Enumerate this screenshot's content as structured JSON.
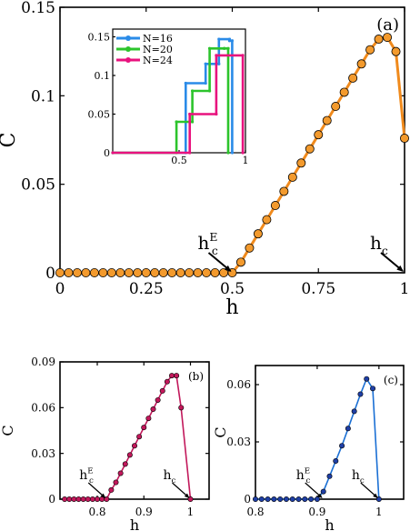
{
  "chart_data": [
    {
      "id": "a",
      "type": "line",
      "panel_label": "(a)",
      "xlabel": "h",
      "ylabel": "C",
      "xlim": [
        0,
        1
      ],
      "ylim": [
        0,
        0.15
      ],
      "xticks": [
        "0",
        "0.25",
        "0.5",
        "0.75",
        "1"
      ],
      "yticks": [
        "0",
        "0.05",
        "0.1",
        "0.15"
      ],
      "color": "#f5a037",
      "marker_color": "#f39a2d",
      "line_color": "#f08a1c",
      "annotations": [
        {
          "label": "h",
          "sub": "c",
          "sup": "E",
          "x": 0.5,
          "y": 0
        },
        {
          "label": "h",
          "sub": "c",
          "sup": "",
          "x": 1.0,
          "y": 0
        }
      ],
      "x": [
        0,
        0.025,
        0.05,
        0.075,
        0.1,
        0.125,
        0.15,
        0.175,
        0.2,
        0.225,
        0.25,
        0.275,
        0.3,
        0.325,
        0.35,
        0.375,
        0.4,
        0.425,
        0.45,
        0.475,
        0.5,
        0.525,
        0.55,
        0.575,
        0.6,
        0.625,
        0.65,
        0.675,
        0.7,
        0.725,
        0.75,
        0.775,
        0.8,
        0.825,
        0.85,
        0.875,
        0.9,
        0.925,
        0.95,
        0.975,
        1.0
      ],
      "y": [
        0,
        0,
        0,
        0,
        0,
        0,
        0,
        0,
        0,
        0,
        0,
        0,
        0,
        0,
        0,
        0,
        0,
        0,
        0,
        0,
        0,
        0.006,
        0.014,
        0.022,
        0.03,
        0.038,
        0.046,
        0.054,
        0.062,
        0.07,
        0.078,
        0.086,
        0.094,
        0.102,
        0.11,
        0.118,
        0.126,
        0.132,
        0.133,
        0.125,
        0.076
      ],
      "inset": {
        "xlim": [
          0,
          1
        ],
        "ylim": [
          0,
          0.16
        ],
        "xticks": [
          "0.5",
          "1"
        ],
        "yticks": [
          "0",
          "0.05",
          "0.1",
          "0.15"
        ],
        "series": [
          {
            "name": "N=16",
            "color": "#2a8be8",
            "points": [
              [
                0,
                0
              ],
              [
                0.55,
                0
              ],
              [
                0.55,
                0.09
              ],
              [
                0.7,
                0.09
              ],
              [
                0.7,
                0.115
              ],
              [
                0.8,
                0.115
              ],
              [
                0.8,
                0.147
              ],
              [
                0.88,
                0.147
              ],
              [
                0.88,
                0.145
              ],
              [
                0.9,
                0.145
              ],
              [
                0.9,
                0
              ]
            ]
          },
          {
            "name": "N=20",
            "color": "#2cc42c",
            "points": [
              [
                0,
                0
              ],
              [
                0.48,
                0
              ],
              [
                0.48,
                0.04
              ],
              [
                0.6,
                0.04
              ],
              [
                0.6,
                0.08
              ],
              [
                0.73,
                0.08
              ],
              [
                0.73,
                0.135
              ],
              [
                0.84,
                0.135
              ],
              [
                0.84,
                0.135
              ],
              [
                0.87,
                0.135
              ],
              [
                0.87,
                0
              ]
            ]
          },
          {
            "name": "N=24",
            "color": "#e8127e",
            "points": [
              [
                0,
                0
              ],
              [
                0.58,
                0
              ],
              [
                0.58,
                0.05
              ],
              [
                0.78,
                0.05
              ],
              [
                0.78,
                0.126
              ],
              [
                0.98,
                0.126
              ],
              [
                0.98,
                0
              ]
            ]
          }
        ]
      }
    },
    {
      "id": "b",
      "type": "line",
      "panel_label": "(b)",
      "xlabel": "h",
      "ylabel": "C",
      "xlim": [
        0.72,
        1.04
      ],
      "ylim": [
        0,
        0.09
      ],
      "xticks": [
        "0.8",
        "0.9",
        "1"
      ],
      "yticks": [
        "0",
        "0.03",
        "0.06",
        "0.09"
      ],
      "color": "#c2185b",
      "annotations": [
        {
          "label": "h",
          "sub": "c",
          "sup": "E",
          "x": 0.82,
          "y": 0
        },
        {
          "label": "h",
          "sub": "c",
          "sup": "",
          "x": 1.0,
          "y": 0
        }
      ],
      "x": [
        0.73,
        0.74,
        0.75,
        0.76,
        0.77,
        0.78,
        0.79,
        0.8,
        0.81,
        0.82,
        0.83,
        0.84,
        0.85,
        0.86,
        0.87,
        0.88,
        0.89,
        0.9,
        0.91,
        0.92,
        0.93,
        0.94,
        0.95,
        0.96,
        0.97,
        0.98,
        1.0
      ],
      "y": [
        0,
        0,
        0,
        0,
        0,
        0,
        0,
        0,
        0,
        0,
        0.006,
        0.011,
        0.017,
        0.023,
        0.029,
        0.035,
        0.041,
        0.047,
        0.053,
        0.059,
        0.065,
        0.071,
        0.077,
        0.081,
        0.081,
        0.06,
        0
      ]
    },
    {
      "id": "c",
      "type": "line",
      "panel_label": "(c)",
      "xlabel": "h",
      "ylabel": "C",
      "xlim": [
        0.8,
        1.04
      ],
      "ylim": [
        0,
        0.07
      ],
      "xticks": [
        "0.8",
        "0.9",
        "1"
      ],
      "yticks": [
        "0",
        "0.03",
        "0.06"
      ],
      "color": "#1a6fd4",
      "marker_color": "#1f3fa6",
      "annotations": [
        {
          "label": "h",
          "sub": "c",
          "sup": "E",
          "x": 0.91,
          "y": 0
        },
        {
          "label": "h",
          "sub": "c",
          "sup": "",
          "x": 1.0,
          "y": 0
        }
      ],
      "x": [
        0.8,
        0.81,
        0.82,
        0.83,
        0.84,
        0.85,
        0.86,
        0.87,
        0.88,
        0.89,
        0.9,
        0.91,
        0.92,
        0.93,
        0.94,
        0.95,
        0.96,
        0.97,
        0.98,
        0.99,
        1.0
      ],
      "y": [
        0,
        0,
        0,
        0,
        0,
        0,
        0,
        0,
        0,
        0,
        0,
        0.004,
        0.012,
        0.02,
        0.028,
        0.037,
        0.046,
        0.055,
        0.063,
        0.058,
        0
      ]
    }
  ]
}
